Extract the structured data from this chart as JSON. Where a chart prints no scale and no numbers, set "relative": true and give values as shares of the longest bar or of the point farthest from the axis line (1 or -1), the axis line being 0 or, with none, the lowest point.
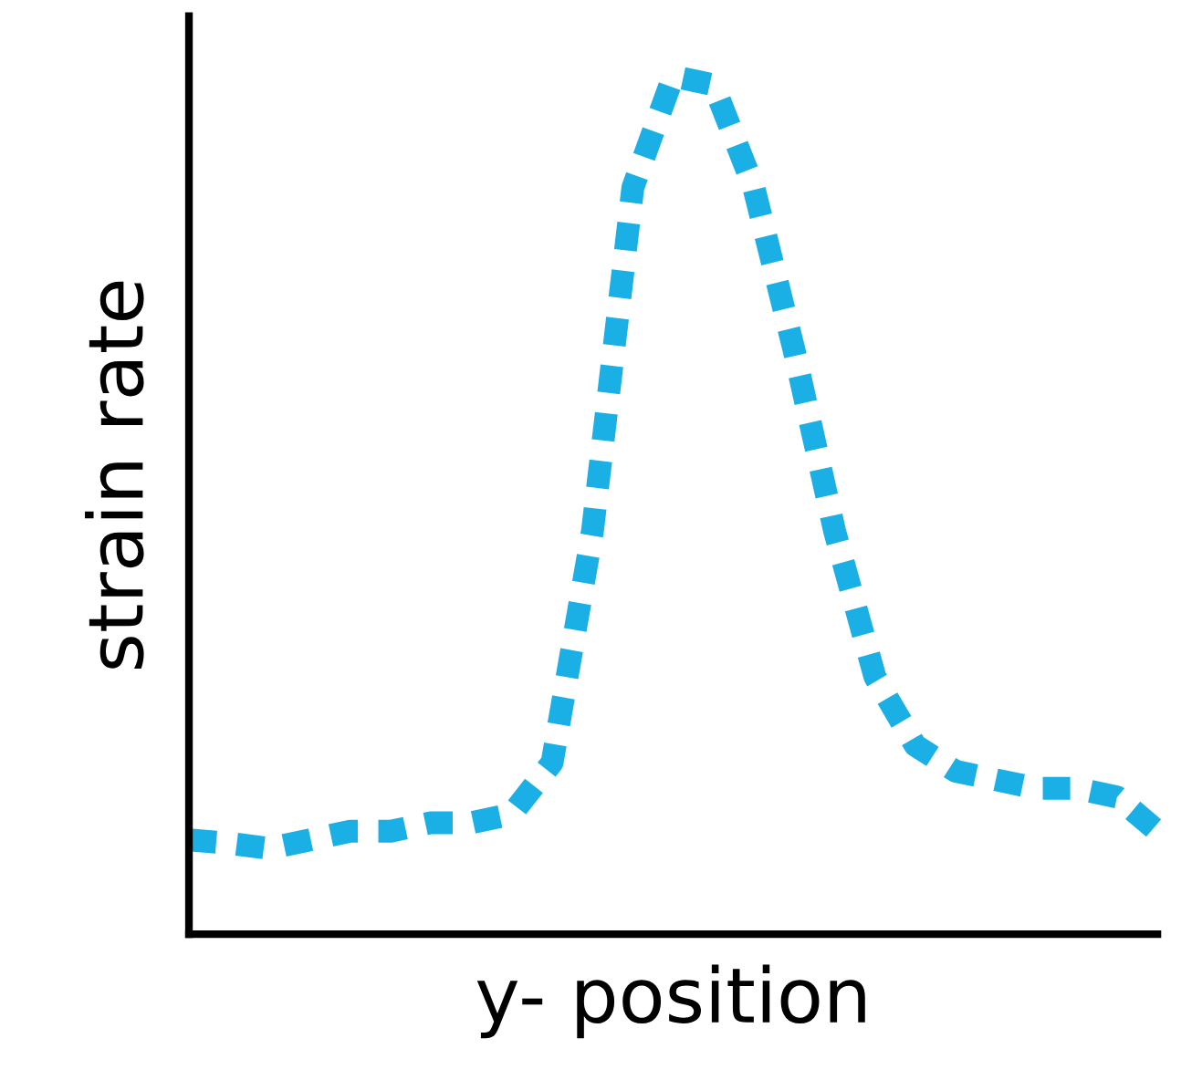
{
  "chart_data": {
    "type": "line",
    "xlabel": "y- position",
    "ylabel": "strain rate",
    "relative": true,
    "categories": [
      null,
      null,
      null,
      null,
      null,
      null,
      null,
      null,
      null,
      null,
      null,
      null,
      null,
      null,
      null,
      null,
      null,
      null,
      null,
      null,
      null,
      null,
      null,
      null,
      null
    ],
    "series": [
      {
        "color": "#1ab0e6",
        "values": [
          0.11,
          0.106,
          0.1,
          0.11,
          0.12,
          0.12,
          0.13,
          0.13,
          0.14,
          0.2,
          0.47,
          0.87,
          1.0,
          0.99,
          0.87,
          0.68,
          0.47,
          0.3,
          0.22,
          0.19,
          0.18,
          0.17,
          0.17,
          0.16,
          0.12
        ]
      }
    ],
    "line_style": "dashed",
    "marker": "none",
    "grid": false,
    "legend": false,
    "tick_labels": false
  }
}
